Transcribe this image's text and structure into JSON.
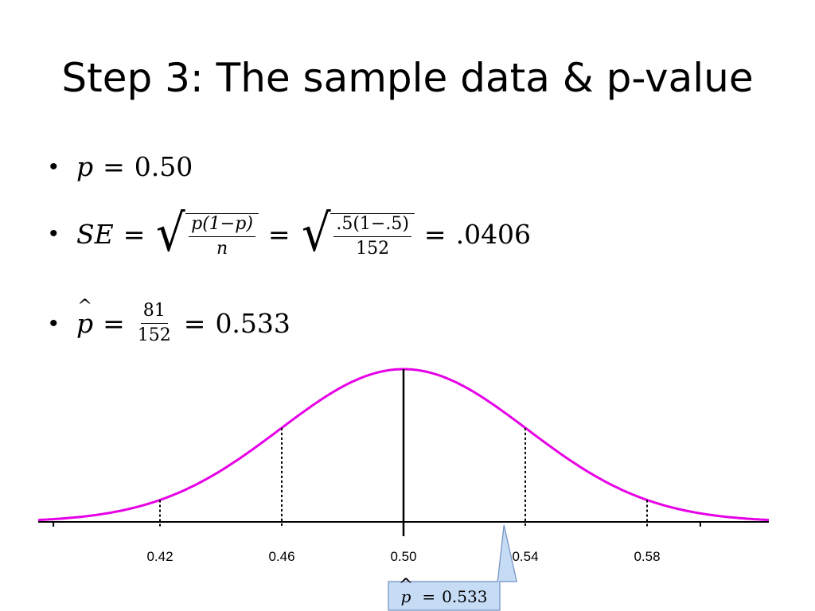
{
  "slide": {
    "title": "Step 3: The sample data & p-value",
    "bullets": {
      "b1": {
        "lhs": "p",
        "eq": "=",
        "rhs": "0.50"
      },
      "b2": {
        "lhs": "SE",
        "eq1": "=",
        "frac1_num": "p(1−p)",
        "frac1_den": "n",
        "eq2": "=",
        "frac2_num": ".5(1−.5)",
        "frac2_den": "152",
        "eq3": "=",
        "result": ".0406"
      },
      "b3": {
        "lhs": "p",
        "eq1": "=",
        "frac_num": "81",
        "frac_den": "152",
        "eq2": "=",
        "result": "0.533"
      }
    },
    "callout": {
      "lhs": "p",
      "eq": "=",
      "value": "0.533"
    }
  },
  "chart_data": {
    "type": "area",
    "mean": 0.5,
    "sd": 0.0406,
    "xlim": [
      0.38,
      0.62
    ],
    "tick_labels": [
      "0.42",
      "0.46",
      "0.50",
      "0.54",
      "0.58"
    ],
    "dashed_markers": [
      0.42,
      0.46,
      0.54,
      0.58
    ],
    "solid_marker": 0.5,
    "sample_value": 0.533,
    "unlabeled_ticks": [
      0.385,
      0.5975
    ],
    "colors": {
      "curve": "#e600e6",
      "axis": "#000000",
      "callout_fill": "#c6dcf5",
      "callout_stroke": "#6f8fbf"
    }
  }
}
